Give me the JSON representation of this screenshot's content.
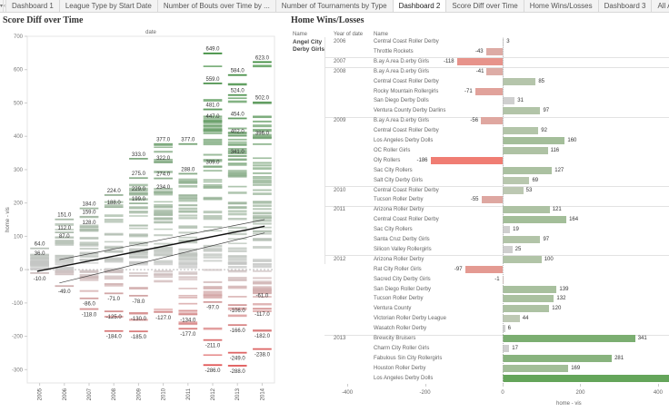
{
  "tabs": {
    "menu_icon": "▾",
    "back_icon": "‹",
    "items": [
      {
        "label": "Dashboard 1",
        "active": false
      },
      {
        "label": "League Type by Start Date",
        "active": false
      },
      {
        "label": "Number of Bouts over Time by ...",
        "active": false
      },
      {
        "label": "Number of Tournaments by Type",
        "active": false
      },
      {
        "label": "Dashboard 2",
        "active": true
      },
      {
        "label": "Score Diff over Time",
        "active": false
      },
      {
        "label": "Home Wins/Losses",
        "active": false
      },
      {
        "label": "Dashboard 3",
        "active": false
      },
      {
        "label": "All Active Derby",
        "active": false
      }
    ]
  },
  "left_title": "Score Diff over Time",
  "right_title": "Home Wins/Losses",
  "colors": {
    "positive": "#3a8a3a",
    "negative": "#d9534f",
    "neutral": "#c7c7c7"
  },
  "chart_data": [
    {
      "type": "scatter",
      "title": "Score Diff over Time",
      "column_header": "date",
      "xlabel": "",
      "ylabel": "home - vis",
      "ylim": [
        -340,
        700
      ],
      "yticks": [
        -300,
        -200,
        -100,
        0,
        100,
        200,
        300,
        400,
        500,
        600,
        700
      ],
      "categories": [
        "2005",
        "2006",
        "2007",
        "2008",
        "2009",
        "2010",
        "2011",
        "2012",
        "2013",
        "2014"
      ],
      "labeled_values": [
        {
          "year": "2005",
          "values": [
            64.0,
            36.0,
            -10.0
          ]
        },
        {
          "year": "2006",
          "values": [
            151.0,
            112.0,
            87.0,
            -49.0
          ]
        },
        {
          "year": "2007",
          "values": [
            184.0,
            159.0,
            128.0,
            -86.0,
            -118.0
          ]
        },
        {
          "year": "2008",
          "values": [
            224.0,
            188.0,
            -71.0,
            -125.0,
            -184.0
          ]
        },
        {
          "year": "2009",
          "values": [
            333.0,
            275.0,
            229.0,
            199.0,
            -78.0,
            -130.0,
            -185.0
          ]
        },
        {
          "year": "2010",
          "values": [
            377.0,
            322.0,
            274.0,
            234.0,
            -127.0
          ]
        },
        {
          "year": "2011",
          "values": [
            377.0,
            288.0,
            -134.0,
            -177.0
          ]
        },
        {
          "year": "2012",
          "values": [
            649.0,
            559.0,
            481.0,
            447.0,
            309.0,
            -97.0,
            -211.0,
            -286.0
          ]
        },
        {
          "year": "2013",
          "values": [
            584.0,
            524.0,
            454.0,
            402.0,
            341.0,
            -106.0,
            -166.0,
            -249.0,
            -288.0
          ]
        },
        {
          "year": "2014",
          "values": [
            623.0,
            502.0,
            396.0,
            -61.0,
            -117.0,
            -182.0,
            -238.0
          ]
        }
      ],
      "trend_line": {
        "start": {
          "year": "2005",
          "value": -5
        },
        "end": {
          "year": "2014",
          "value": 130
        }
      },
      "reference_line": 0
    },
    {
      "type": "bar",
      "title": "Home Wins/Losses",
      "xlabel": "home - vis",
      "xlim": [
        -500,
        1100
      ],
      "xticks": [
        -400,
        -200,
        0,
        200,
        400,
        600,
        800,
        1000
      ],
      "columns": [
        "Name",
        "Year of date",
        "Name"
      ],
      "team": "Angel City Derby Girls",
      "groups": [
        {
          "year": "2006",
          "rows": [
            {
              "name": "Central Coast Roller Derby",
              "value": 3
            },
            {
              "name": "Throttle Rockets",
              "value": -43
            }
          ]
        },
        {
          "year": "2007",
          "rows": [
            {
              "name": "B.ay A.rea D.erby Girls",
              "value": -118
            }
          ]
        },
        {
          "year": "2008",
          "rows": [
            {
              "name": "B.ay A.rea D.erby Girls",
              "value": -41
            },
            {
              "name": "Central Coast Roller Derby",
              "value": 85
            },
            {
              "name": "Rocky Mountain Rollergirls",
              "value": -71
            },
            {
              "name": "San Diego Derby Dolls",
              "value": 31
            },
            {
              "name": "Ventura County Derby Darlins",
              "value": 97
            }
          ]
        },
        {
          "year": "2009",
          "rows": [
            {
              "name": "B.ay A.rea D.erby Girls",
              "value": -56
            },
            {
              "name": "Central Coast Roller Derby",
              "value": 92
            },
            {
              "name": "Los Angeles Derby Dolls",
              "value": 160
            },
            {
              "name": "OC Roller Girls",
              "value": 116
            },
            {
              "name": "Oly Rollers",
              "value": -186
            },
            {
              "name": "Sac City Rollers",
              "value": 127
            },
            {
              "name": "Salt City Derby Girls",
              "value": 69
            }
          ]
        },
        {
          "year": "2010",
          "rows": [
            {
              "name": "Central Coast Roller Derby",
              "value": 53
            },
            {
              "name": "Tucson Roller Derby",
              "value": -55
            }
          ]
        },
        {
          "year": "2011",
          "rows": [
            {
              "name": "Arizona Roller Derby",
              "value": 121
            },
            {
              "name": "Central Coast Roller Derby",
              "value": 164
            },
            {
              "name": "Sac City Rollers",
              "value": 19
            },
            {
              "name": "Santa Cruz Derby Girls",
              "value": 97
            },
            {
              "name": "Silicon Valley Rollergirls",
              "value": 25
            }
          ]
        },
        {
          "year": "2012",
          "rows": [
            {
              "name": "Arizona Roller Derby",
              "value": 100
            },
            {
              "name": "Rat City Roller Girls",
              "value": -97
            },
            {
              "name": "Sacred City Derby Girls",
              "value": -1
            },
            {
              "name": "San Diego Roller Derby",
              "value": 139
            },
            {
              "name": "Tucson Roller Derby",
              "value": 132
            },
            {
              "name": "Ventura County",
              "value": 120
            },
            {
              "name": "Victorian Roller Derby League",
              "value": 44
            },
            {
              "name": "Wasatch Roller Derby",
              "value": 6
            }
          ]
        },
        {
          "year": "2013",
          "rows": [
            {
              "name": "Brewcity Bruisers",
              "value": 341
            },
            {
              "name": "Charm City Roller Girls",
              "value": 17
            },
            {
              "name": "Fabulous Sin City Rollergirls",
              "value": 281
            },
            {
              "name": "Houston Roller Derby",
              "value": 169
            },
            {
              "name": "Los Angeles Derby Dolls",
              "value": 440
            }
          ]
        }
      ]
    }
  ]
}
